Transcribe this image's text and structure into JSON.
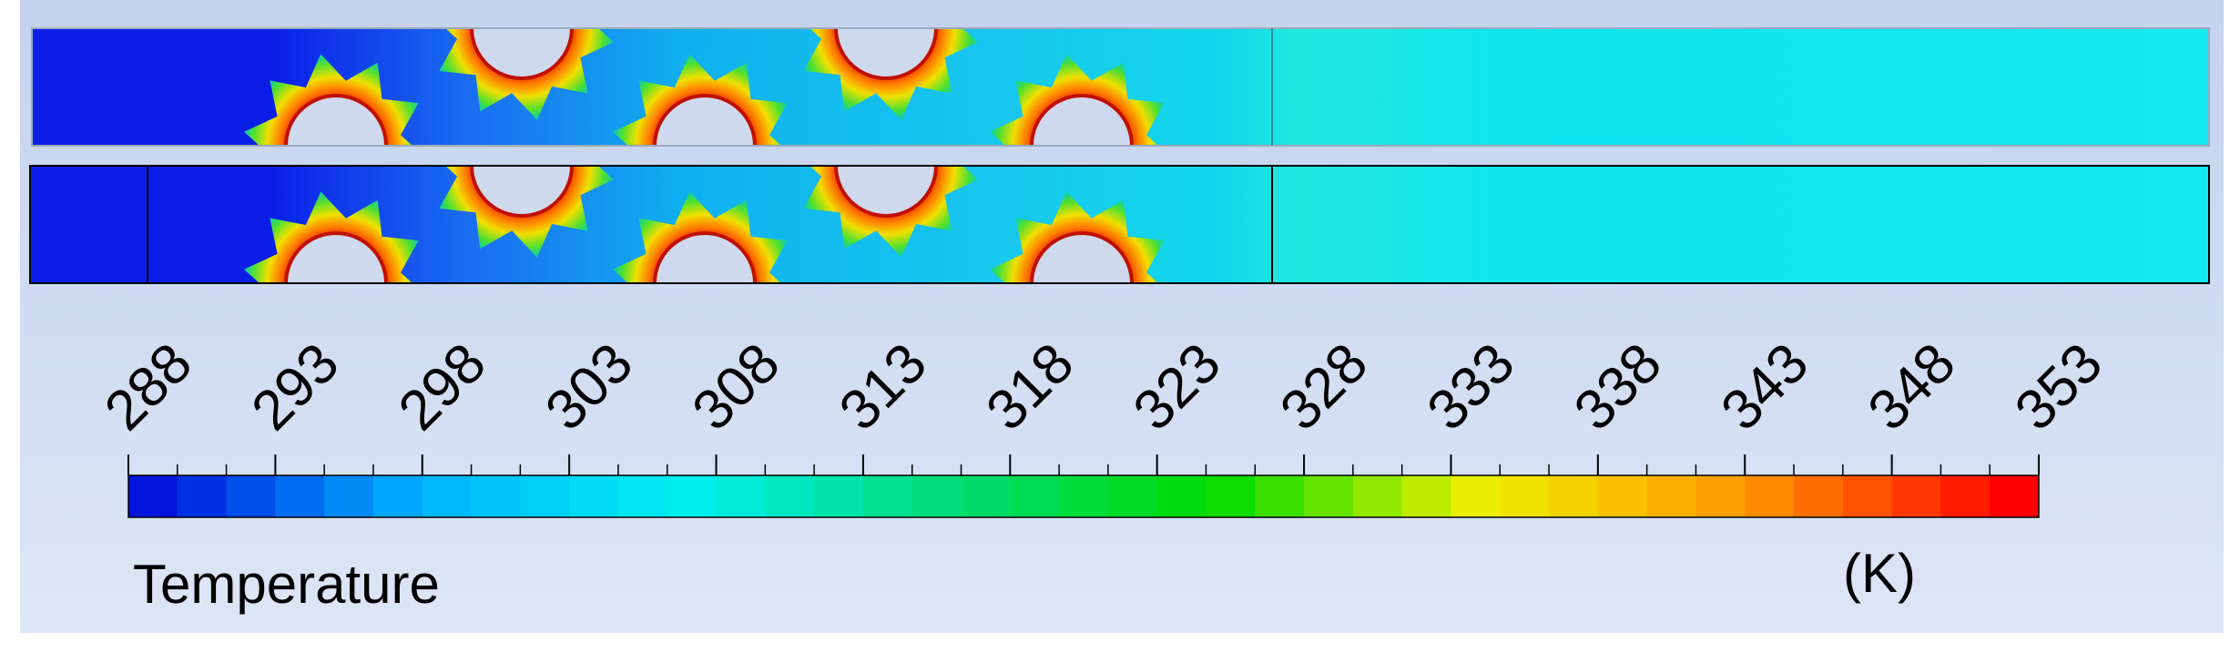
{
  "colorbar": {
    "title": "Temperature",
    "unit": "(K)",
    "ticks": [
      288,
      293,
      298,
      303,
      308,
      313,
      318,
      323,
      328,
      333,
      338,
      343,
      348,
      353
    ]
  }
}
